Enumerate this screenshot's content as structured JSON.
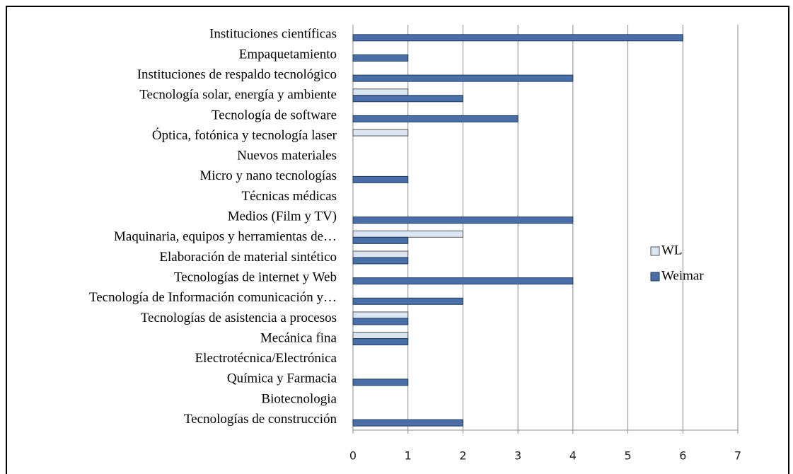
{
  "chart_data": {
    "type": "hbar",
    "categories": [
      "Instituciones científicas",
      "Empaquetamiento",
      "Instituciones de respaldo tecnológico",
      "Tecnología solar, energía y ambiente",
      "Tecnología de software",
      "Óptica, fotónica y tecnología laser",
      "Nuevos materiales",
      "Micro y nano tecnologías",
      "Técnicas médicas",
      "Medios (Film y TV)",
      "Maquinaria, equipos y herramientas de…",
      "Elaboración de material sintético",
      "Tecnologías de internet y Web",
      "Tecnología de Información comunicación y…",
      "Tecnologías de asistencia a procesos",
      "Mecánica fina",
      "Electrotécnica/Electrónica",
      "Química y Farmacia",
      "Biotecnologia",
      "Tecnologías de construcción"
    ],
    "series": [
      {
        "name": "WL",
        "color": "#dce6f2",
        "values": [
          0,
          0,
          0,
          1,
          0,
          1,
          0,
          0,
          0,
          0,
          2,
          1,
          0,
          0,
          1,
          1,
          0,
          0,
          0,
          0
        ]
      },
      {
        "name": "Weimar",
        "color": "#4a6fa8",
        "values": [
          6,
          1,
          4,
          2,
          3,
          0,
          0,
          1,
          0,
          4,
          1,
          1,
          4,
          2,
          1,
          1,
          0,
          1,
          0,
          2
        ]
      }
    ],
    "xlim": [
      0,
      7
    ],
    "xticks": [
      0,
      1,
      2,
      3,
      4,
      5,
      6,
      7
    ],
    "grid": true,
    "legend": "right"
  }
}
